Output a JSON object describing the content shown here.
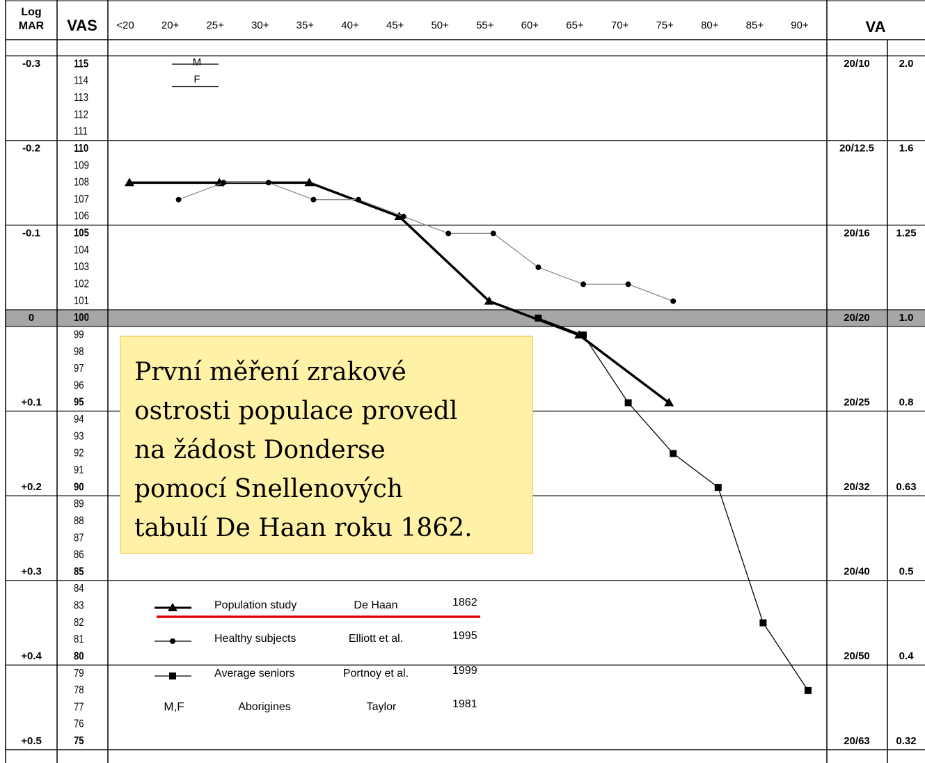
{
  "chart_data": {
    "type": "line",
    "header": {
      "logmar": [
        "Log",
        "MAR"
      ],
      "vas": "VAS",
      "va": "VA"
    },
    "categories": [
      "<20",
      "20+",
      "25+",
      "30+",
      "35+",
      "40+",
      "45+",
      "50+",
      "55+",
      "60+",
      "65+",
      "70+",
      "75+",
      "80+",
      "85+",
      "90+"
    ],
    "ylim": [
      74.5,
      115.5
    ],
    "yticks": [
      115,
      114,
      113,
      112,
      111,
      110,
      109,
      108,
      107,
      106,
      105,
      104,
      103,
      102,
      101,
      100,
      99,
      98,
      97,
      96,
      95,
      94,
      93,
      92,
      91,
      90,
      89,
      88,
      87,
      86,
      85,
      84,
      83,
      82,
      81,
      80,
      79,
      78,
      77,
      76,
      75
    ],
    "rows": [
      {
        "logmar": "-0.3",
        "snellen": "20/10",
        "decimal": "2.0"
      },
      {
        "logmar": "-0.2",
        "snellen": "20/12.5",
        "decimal": "1.6"
      },
      {
        "logmar": "-0.1",
        "snellen": "20/16",
        "decimal": "1.25"
      },
      {
        "logmar": "0",
        "snellen": "20/20",
        "decimal": "1.0"
      },
      {
        "logmar": "+0.1",
        "snellen": "20/25",
        "decimal": "0.8"
      },
      {
        "logmar": "+0.2",
        "snellen": "20/32",
        "decimal": "0.63"
      },
      {
        "logmar": "+0.3",
        "snellen": "20/40",
        "decimal": "0.5"
      },
      {
        "logmar": "+0.4",
        "snellen": "20/50",
        "decimal": "0.4"
      },
      {
        "logmar": "+0.5",
        "snellen": "20/63",
        "decimal": "0.32"
      }
    ],
    "series": [
      {
        "name": "Population study",
        "author": "De Haan",
        "year": "1862",
        "marker": "triangle",
        "color": "#000000",
        "values": [
          108,
          null,
          108,
          null,
          108,
          null,
          106,
          null,
          101,
          null,
          99,
          null,
          95,
          null,
          null,
          null
        ]
      },
      {
        "name": "Healthy subjects",
        "author": "Elliott et al.",
        "year": "1995",
        "marker": "circle",
        "color": "#000000",
        "values": [
          null,
          107,
          108,
          108,
          107,
          107,
          106,
          105,
          105,
          103,
          102,
          102,
          101,
          null,
          null,
          null
        ]
      },
      {
        "name": "Average seniors",
        "author": "Portnoy et al.",
        "year": "1999",
        "marker": "square",
        "color": "#000000",
        "values": [
          null,
          null,
          null,
          null,
          null,
          null,
          null,
          null,
          null,
          100,
          99,
          95,
          92,
          90,
          82,
          78
        ]
      }
    ],
    "aborigines": {
      "name": "Aborigines",
      "author": "Taylor",
      "year": "1981",
      "symbol": "M,F",
      "points": [
        {
          "label": "M",
          "value": 115
        },
        {
          "label": "F",
          "value": 114
        }
      ]
    },
    "annotation": [
      "První měření zrakové",
      "ostrosti populace provedl",
      "na žádost Donderse",
      "pomocí Snellenových",
      "tabulí De Haan roku 1862."
    ]
  }
}
